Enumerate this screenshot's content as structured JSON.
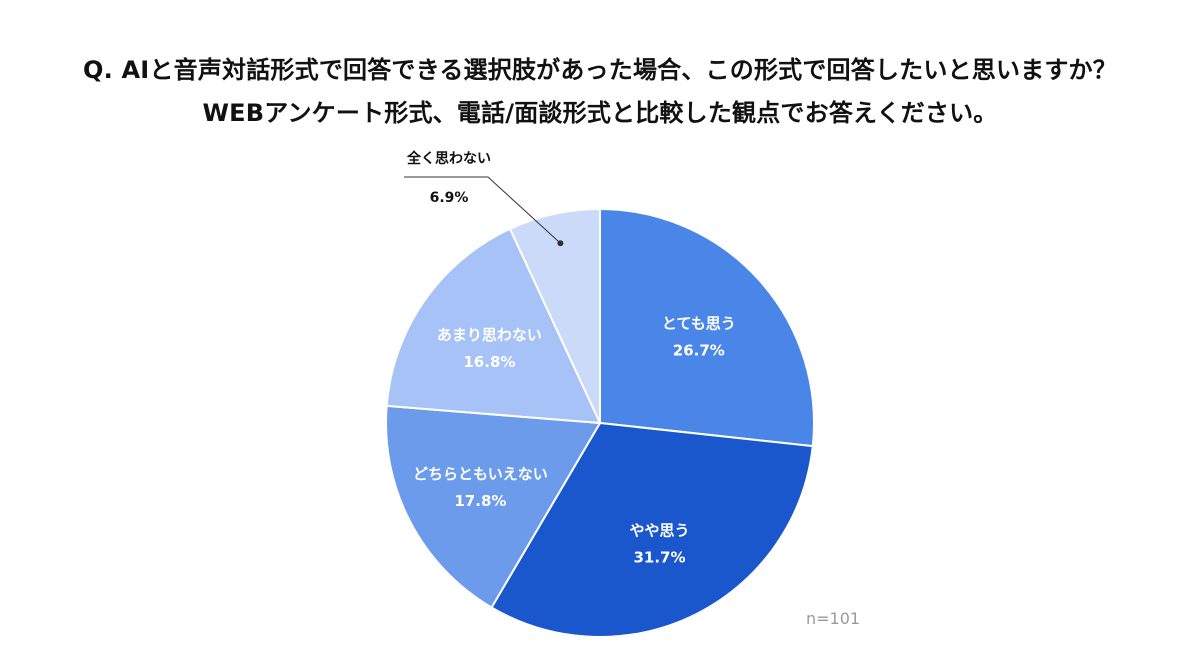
{
  "title": {
    "line1": "Q. AIと音声対話形式で回答できる選択肢があった場合、この形式で回答したいと思いますか？",
    "line2": "WEBアンケート形式、電話/面談形式と比較した観点でお答えください。"
  },
  "chart_data": {
    "type": "pie",
    "start": "12 o'clock",
    "direction": "clockwise",
    "unit": "%",
    "slices": [
      {
        "label": "とても思う",
        "value": 26.7,
        "display": "26.7%",
        "color": "#4A86E8"
      },
      {
        "label": "やや思う",
        "value": 31.7,
        "display": "31.7%",
        "color": "#1A56CC"
      },
      {
        "label": "どちらともいえない",
        "value": 17.8,
        "display": "17.8%",
        "color": "#6C9BEB"
      },
      {
        "label": "あまり思わない",
        "value": 16.8,
        "display": "16.8%",
        "color": "#A6C2F7"
      },
      {
        "label": "全く思わない",
        "value": 6.9,
        "display": "6.9%",
        "color": "#CBDAF9"
      }
    ]
  },
  "footnote": "n=101"
}
